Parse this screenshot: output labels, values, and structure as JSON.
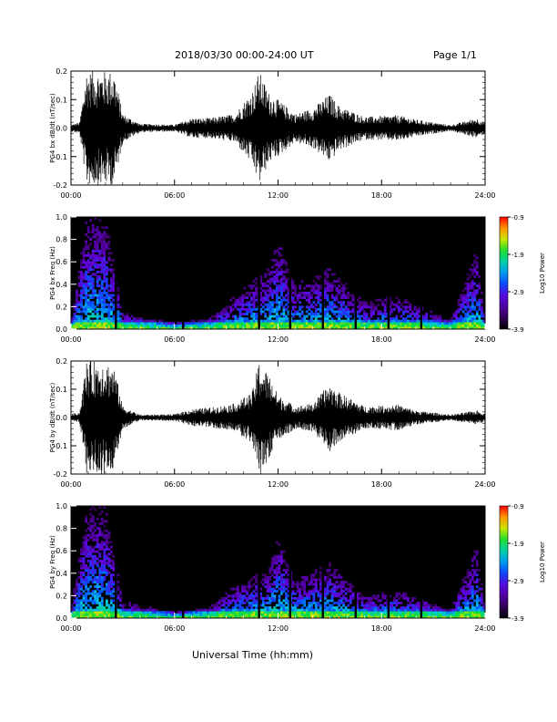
{
  "header": {
    "title": "2018/03/30  00:00-24:00 UT",
    "page": "Page 1/1",
    "xlabel": "Universal Time (hh:mm)"
  },
  "chart_data": [
    {
      "type": "line",
      "ylabel": "PG4 bx dB/dt (nT/sec)",
      "xlim": [
        0,
        24
      ],
      "ylim": [
        -0.2,
        0.2
      ],
      "x_ticks": [
        "00:00",
        "06:00",
        "12:00",
        "18:00",
        "24:00"
      ],
      "y_ticks": [
        "0.2",
        "0.1",
        "0.0",
        "-0.1",
        "-0.2"
      ],
      "envelope": [
        {
          "x": 0.0,
          "amp": 0.012
        },
        {
          "x": 0.5,
          "amp": 0.02
        },
        {
          "x": 0.9,
          "amp": 0.2
        },
        {
          "x": 1.5,
          "amp": 0.2
        },
        {
          "x": 2.0,
          "amp": 0.2
        },
        {
          "x": 2.5,
          "amp": 0.2
        },
        {
          "x": 3.0,
          "amp": 0.05
        },
        {
          "x": 4.0,
          "amp": 0.015
        },
        {
          "x": 6.0,
          "amp": 0.012
        },
        {
          "x": 7.0,
          "amp": 0.035
        },
        {
          "x": 8.0,
          "amp": 0.035
        },
        {
          "x": 9.5,
          "amp": 0.05
        },
        {
          "x": 10.5,
          "amp": 0.13
        },
        {
          "x": 10.9,
          "amp": 0.2
        },
        {
          "x": 11.5,
          "amp": 0.12
        },
        {
          "x": 12.0,
          "amp": 0.1
        },
        {
          "x": 13.0,
          "amp": 0.05
        },
        {
          "x": 14.0,
          "amp": 0.07
        },
        {
          "x": 15.0,
          "amp": 0.12
        },
        {
          "x": 15.5,
          "amp": 0.08
        },
        {
          "x": 17.0,
          "amp": 0.04
        },
        {
          "x": 19.0,
          "amp": 0.045
        },
        {
          "x": 20.0,
          "amp": 0.03
        },
        {
          "x": 22.0,
          "amp": 0.01
        },
        {
          "x": 23.5,
          "amp": 0.035
        },
        {
          "x": 24.0,
          "amp": 0.02
        }
      ]
    },
    {
      "type": "heatmap",
      "ylabel": "PG4 bx Freq (Hz)",
      "xlim": [
        0,
        24
      ],
      "ylim": [
        0,
        1.0
      ],
      "x_ticks": [
        "00:00",
        "06:00",
        "12:00",
        "18:00",
        "24:00"
      ],
      "y_ticks": [
        "1.0",
        "0.8",
        "0.6",
        "0.4",
        "0.2",
        "0.0"
      ],
      "colorbar_label": "Log10 Power",
      "colorbar_ticks": [
        "-0.9",
        "-1.9",
        "-2.9",
        "-3.9"
      ],
      "colorbar_range": [
        -3.9,
        -0.9
      ],
      "gaps_hours": [
        2.6,
        6.5,
        10.9,
        12.7,
        14.6,
        16.5,
        18.4,
        20.3
      ],
      "activity": [
        {
          "x": 0.0,
          "top": 0.05
        },
        {
          "x": 0.9,
          "top": 1.0
        },
        {
          "x": 2.0,
          "top": 1.0
        },
        {
          "x": 2.5,
          "top": 0.6
        },
        {
          "x": 3.0,
          "top": 0.15
        },
        {
          "x": 6.0,
          "top": 0.05
        },
        {
          "x": 8.0,
          "top": 0.1
        },
        {
          "x": 9.5,
          "top": 0.3
        },
        {
          "x": 11.5,
          "top": 0.55
        },
        {
          "x": 12.0,
          "top": 0.8
        },
        {
          "x": 13.0,
          "top": 0.4
        },
        {
          "x": 15.0,
          "top": 0.55
        },
        {
          "x": 17.0,
          "top": 0.25
        },
        {
          "x": 19.0,
          "top": 0.3
        },
        {
          "x": 22.0,
          "top": 0.08
        },
        {
          "x": 23.5,
          "top": 0.7
        },
        {
          "x": 24.0,
          "top": 0.1
        }
      ]
    },
    {
      "type": "line",
      "ylabel": "PG4 by dB/dt (nT/sec)",
      "xlim": [
        0,
        24
      ],
      "ylim": [
        -0.2,
        0.2
      ],
      "x_ticks": [
        "00:00",
        "06:00",
        "12:00",
        "18:00",
        "24:00"
      ],
      "y_ticks": [
        "0.2",
        "0.1",
        "0.0",
        "-0.1",
        "-0.2"
      ],
      "envelope": [
        {
          "x": 0.0,
          "amp": 0.012
        },
        {
          "x": 0.5,
          "amp": 0.02
        },
        {
          "x": 0.9,
          "amp": 0.2
        },
        {
          "x": 1.5,
          "amp": 0.2
        },
        {
          "x": 2.0,
          "amp": 0.2
        },
        {
          "x": 2.5,
          "amp": 0.18
        },
        {
          "x": 3.0,
          "amp": 0.04
        },
        {
          "x": 4.0,
          "amp": 0.01
        },
        {
          "x": 6.0,
          "amp": 0.012
        },
        {
          "x": 7.0,
          "amp": 0.03
        },
        {
          "x": 8.0,
          "amp": 0.035
        },
        {
          "x": 9.5,
          "amp": 0.05
        },
        {
          "x": 10.5,
          "amp": 0.09
        },
        {
          "x": 10.9,
          "amp": 0.2
        },
        {
          "x": 11.5,
          "amp": 0.15
        },
        {
          "x": 12.0,
          "amp": 0.08
        },
        {
          "x": 13.0,
          "amp": 0.04
        },
        {
          "x": 14.0,
          "amp": 0.05
        },
        {
          "x": 15.0,
          "amp": 0.12
        },
        {
          "x": 15.5,
          "amp": 0.09
        },
        {
          "x": 17.0,
          "amp": 0.04
        },
        {
          "x": 19.0,
          "amp": 0.045
        },
        {
          "x": 20.0,
          "amp": 0.025
        },
        {
          "x": 22.0,
          "amp": 0.01
        },
        {
          "x": 23.5,
          "amp": 0.025
        },
        {
          "x": 24.0,
          "amp": 0.015
        }
      ]
    },
    {
      "type": "heatmap",
      "ylabel": "PG4 by Freq (Hz)",
      "xlim": [
        0,
        24
      ],
      "ylim": [
        0,
        1.0
      ],
      "x_ticks": [
        "00:00",
        "06:00",
        "12:00",
        "18:00",
        "24:00"
      ],
      "y_ticks": [
        "1.0",
        "0.8",
        "0.6",
        "0.4",
        "0.2",
        "0.0"
      ],
      "colorbar_label": "Log10 Power",
      "colorbar_ticks": [
        "-0.9",
        "-1.9",
        "-2.9",
        "-3.9"
      ],
      "colorbar_range": [
        -3.9,
        -0.9
      ],
      "gaps_hours": [
        2.6,
        6.5,
        10.9,
        12.7,
        14.6,
        16.5,
        18.4,
        20.3
      ],
      "activity": [
        {
          "x": 0.0,
          "top": 0.05
        },
        {
          "x": 0.9,
          "top": 1.0
        },
        {
          "x": 2.0,
          "top": 1.0
        },
        {
          "x": 2.5,
          "top": 0.6
        },
        {
          "x": 3.0,
          "top": 0.15
        },
        {
          "x": 6.0,
          "top": 0.05
        },
        {
          "x": 8.0,
          "top": 0.1
        },
        {
          "x": 9.5,
          "top": 0.3
        },
        {
          "x": 11.5,
          "top": 0.45
        },
        {
          "x": 12.0,
          "top": 0.75
        },
        {
          "x": 13.0,
          "top": 0.35
        },
        {
          "x": 15.0,
          "top": 0.5
        },
        {
          "x": 17.0,
          "top": 0.2
        },
        {
          "x": 19.0,
          "top": 0.25
        },
        {
          "x": 22.0,
          "top": 0.08
        },
        {
          "x": 23.5,
          "top": 0.65
        },
        {
          "x": 24.0,
          "top": 0.1
        }
      ]
    }
  ]
}
